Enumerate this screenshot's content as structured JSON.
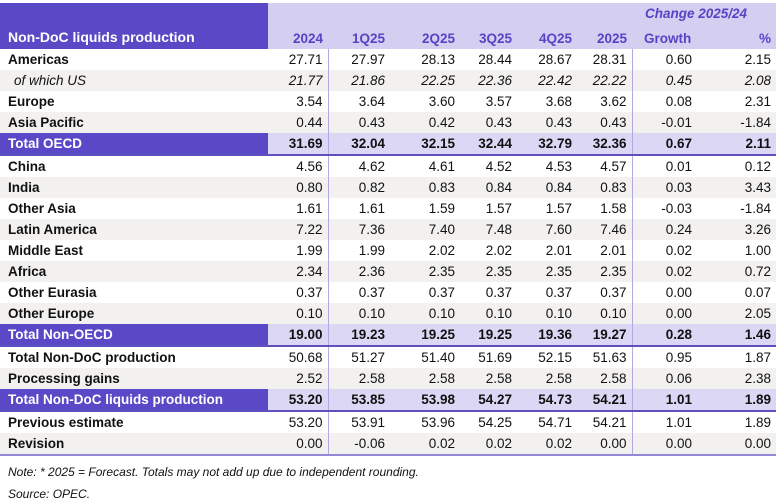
{
  "table": {
    "title": "Non-DoC liquids production",
    "change_header": "Change 2025/24",
    "columns": [
      "2024",
      "1Q25",
      "2Q25",
      "3Q25",
      "4Q25",
      "2025",
      "Growth",
      "%"
    ],
    "rows": [
      {
        "label": "Americas",
        "style": "normal",
        "values": [
          "27.71",
          "27.97",
          "28.13",
          "28.44",
          "28.67",
          "28.31",
          "0.60",
          "2.15"
        ]
      },
      {
        "label": "of which US",
        "style": "sub",
        "values": [
          "21.77",
          "21.86",
          "22.25",
          "22.36",
          "22.42",
          "22.22",
          "0.45",
          "2.08"
        ]
      },
      {
        "label": "Europe",
        "style": "normal",
        "values": [
          "3.54",
          "3.64",
          "3.60",
          "3.57",
          "3.68",
          "3.62",
          "0.08",
          "2.31"
        ]
      },
      {
        "label": "Asia Pacific",
        "style": "normal",
        "values": [
          "0.44",
          "0.43",
          "0.42",
          "0.43",
          "0.43",
          "0.43",
          "-0.01",
          "-1.84"
        ]
      },
      {
        "label": "Total OECD",
        "style": "total",
        "values": [
          "31.69",
          "32.04",
          "32.15",
          "32.44",
          "32.79",
          "32.36",
          "0.67",
          "2.11"
        ]
      },
      {
        "label": "China",
        "style": "normal",
        "values": [
          "4.56",
          "4.62",
          "4.61",
          "4.52",
          "4.53",
          "4.57",
          "0.01",
          "0.12"
        ]
      },
      {
        "label": "India",
        "style": "normal",
        "values": [
          "0.80",
          "0.82",
          "0.83",
          "0.84",
          "0.84",
          "0.83",
          "0.03",
          "3.43"
        ]
      },
      {
        "label": "Other Asia",
        "style": "normal",
        "values": [
          "1.61",
          "1.61",
          "1.59",
          "1.57",
          "1.57",
          "1.58",
          "-0.03",
          "-1.84"
        ]
      },
      {
        "label": "Latin America",
        "style": "normal",
        "values": [
          "7.22",
          "7.36",
          "7.40",
          "7.48",
          "7.60",
          "7.46",
          "0.24",
          "3.26"
        ]
      },
      {
        "label": "Middle East",
        "style": "normal",
        "values": [
          "1.99",
          "1.99",
          "2.02",
          "2.02",
          "2.01",
          "2.01",
          "0.02",
          "1.00"
        ]
      },
      {
        "label": "Africa",
        "style": "normal",
        "values": [
          "2.34",
          "2.36",
          "2.35",
          "2.35",
          "2.35",
          "2.35",
          "0.02",
          "0.72"
        ]
      },
      {
        "label": "Other Eurasia",
        "style": "normal",
        "values": [
          "0.37",
          "0.37",
          "0.37",
          "0.37",
          "0.37",
          "0.37",
          "0.00",
          "0.07"
        ]
      },
      {
        "label": "Other Europe",
        "style": "normal",
        "values": [
          "0.10",
          "0.10",
          "0.10",
          "0.10",
          "0.10",
          "0.10",
          "0.00",
          "2.05"
        ]
      },
      {
        "label": "Total Non-OECD",
        "style": "total",
        "values": [
          "19.00",
          "19.23",
          "19.25",
          "19.25",
          "19.36",
          "19.27",
          "0.28",
          "1.46"
        ]
      },
      {
        "label": "Total Non-DoC production",
        "style": "normal",
        "values": [
          "50.68",
          "51.27",
          "51.40",
          "51.69",
          "52.15",
          "51.63",
          "0.95",
          "1.87"
        ]
      },
      {
        "label": "Processing gains",
        "style": "normal",
        "values": [
          "2.52",
          "2.58",
          "2.58",
          "2.58",
          "2.58",
          "2.58",
          "0.06",
          "2.38"
        ]
      },
      {
        "label": "Total Non-DoC liquids production",
        "style": "total",
        "values": [
          "53.20",
          "53.85",
          "53.98",
          "54.27",
          "54.73",
          "54.21",
          "1.01",
          "1.89"
        ]
      },
      {
        "label": "Previous estimate",
        "style": "normal",
        "values": [
          "53.20",
          "53.91",
          "53.96",
          "54.25",
          "54.71",
          "54.21",
          "1.01",
          "1.89"
        ]
      },
      {
        "label": "Revision",
        "style": "normal",
        "values": [
          "0.00",
          "-0.06",
          "0.02",
          "0.02",
          "0.02",
          "0.00",
          "0.00",
          "0.00"
        ]
      }
    ]
  },
  "footer": {
    "note": "Note: * 2025 = Forecast. Totals may not add up due to independent rounding.",
    "source": "Source: OPEC."
  },
  "colors": {
    "dark_purple": "#5a49c7",
    "header_lavender": "#d4cff0",
    "total_lavender": "#dcd7f4",
    "shade_gray": "#f2f1f0",
    "header_text_purple": "#5643c5",
    "column_divider": "#b2a9e1",
    "total_border": "#5f50c0",
    "table_bottom_border": "#9288d3"
  }
}
